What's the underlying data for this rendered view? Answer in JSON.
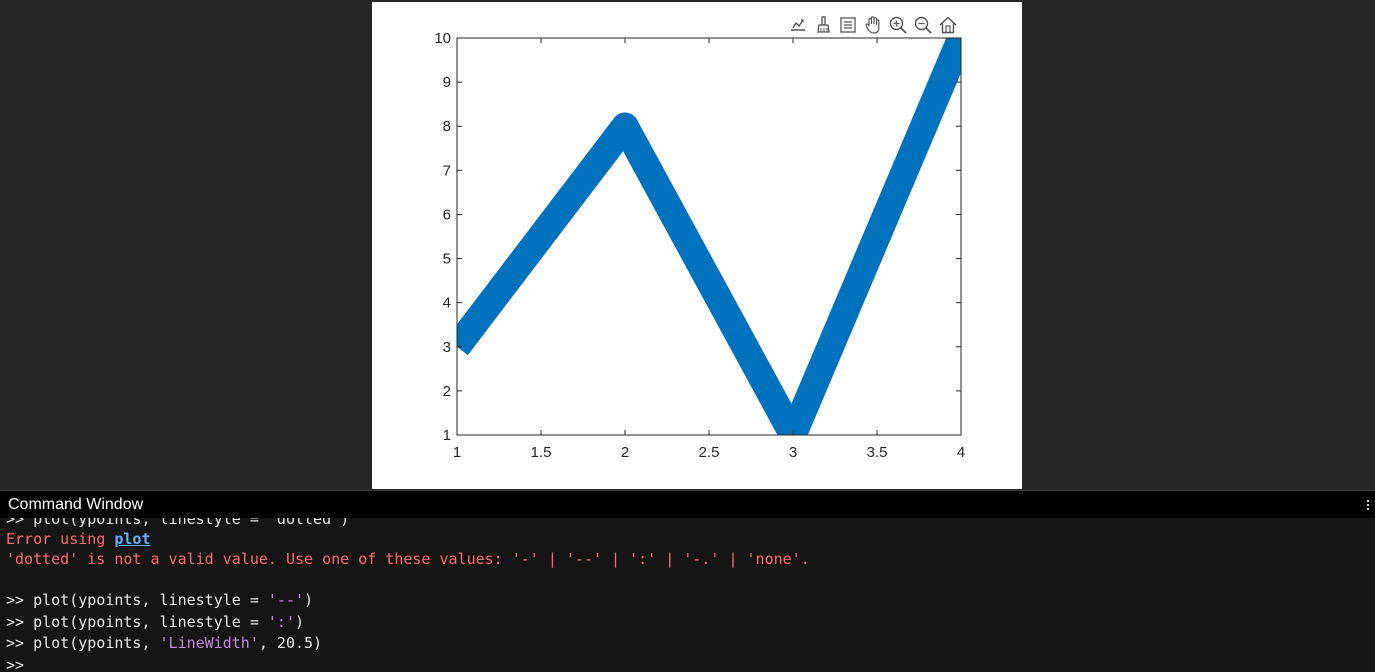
{
  "command_window": {
    "title": "Command Window",
    "lines": {
      "cut_line": ">> plot(ypoints, linestyle = 'dotted')",
      "error_prefix": "Error using ",
      "error_link": "plot",
      "error_message": "'dotted' is not a valid value. Use one of these values: '-' | '--' | ':' | '-.' | 'none'.",
      "cmd1_prefix": ">> plot(ypoints, linestyle = ",
      "cmd1_str": "'--'",
      "cmd1_suffix": ")",
      "cmd2_prefix": ">> plot(ypoints, linestyle = ",
      "cmd2_str": "':'",
      "cmd2_suffix": ")",
      "cmd3_prefix": ">> plot(ypoints, ",
      "cmd3_str": "'LineWidth'",
      "cmd3_suffix": ", 20.5)",
      "prompt": ">>"
    }
  },
  "toolbar": {
    "icons": [
      "export-icon",
      "brush-icon",
      "data-tips-icon",
      "pan-icon",
      "zoom-in-icon",
      "zoom-out-icon",
      "home-icon"
    ]
  },
  "chart_data": {
    "type": "line",
    "x": [
      1,
      2,
      3,
      4
    ],
    "series": [
      {
        "values": [
          3,
          8,
          1,
          10
        ],
        "color": "#0072bd",
        "line_width": 20.5
      }
    ],
    "xlim": [
      1,
      4
    ],
    "ylim": [
      1,
      10
    ],
    "xticks": [
      1,
      1.5,
      2,
      2.5,
      3,
      3.5,
      4
    ],
    "yticks": [
      1,
      2,
      3,
      4,
      5,
      6,
      7,
      8,
      9,
      10
    ],
    "xtick_labels": [
      "1",
      "1.5",
      "2",
      "2.5",
      "3",
      "3.5",
      "4"
    ],
    "ytick_labels": [
      "1",
      "2",
      "3",
      "4",
      "5",
      "6",
      "7",
      "8",
      "9",
      "10"
    ],
    "title": "",
    "xlabel": "",
    "ylabel": "",
    "grid": false
  }
}
